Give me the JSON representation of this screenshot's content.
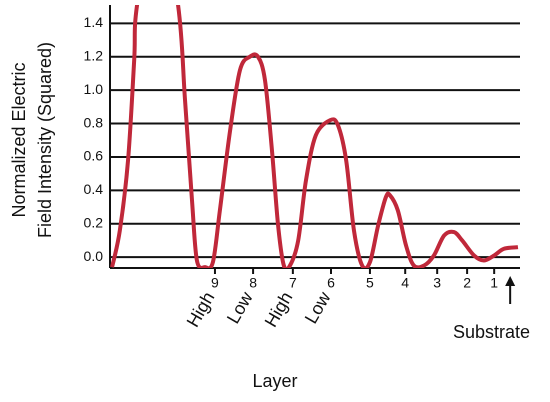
{
  "chart_data": {
    "type": "line",
    "ylabel": [
      "Normalized Electric",
      "Field Intensity (Squared)"
    ],
    "xlabel": "Layer",
    "xlim": [
      0,
      100
    ],
    "ylim": [
      -0.065,
      1.51
    ],
    "yticks": [
      {
        "value": 0,
        "label": "0.0"
      },
      0.2,
      0.4,
      0.6,
      0.8,
      {
        "value": 1,
        "label": "1.0"
      },
      1.2,
      1.4
    ],
    "xticks": [
      {
        "value": 25.6,
        "label": "9"
      },
      {
        "value": 34.9,
        "label": "8"
      },
      {
        "value": 44.6,
        "label": "7"
      },
      {
        "value": 53.9,
        "label": "6"
      },
      {
        "value": 63.4,
        "label": "5"
      },
      {
        "value": 72.0,
        "label": "4"
      },
      {
        "value": 79.8,
        "label": "3"
      },
      {
        "value": 87.1,
        "label": "2"
      },
      {
        "value": 93.7,
        "label": "1"
      }
    ],
    "layer_types": [
      "High",
      "Low",
      "High",
      "Low"
    ],
    "annotation": {
      "text": "Substrate",
      "x": 97.6
    },
    "grid": true,
    "series": [
      {
        "color": "#c0283a",
        "x": [
          0.5,
          2.4,
          4.4,
          5.9,
          6.6,
          11.5,
          16.6,
          18.3,
          20.0,
          21.2,
          23.2,
          25.1,
          26.8,
          29.3,
          31.7,
          34.1,
          36.1,
          37.8,
          39.5,
          41.0,
          42.4,
          43.9,
          45.9,
          47.8,
          50.2,
          53.7,
          55.6,
          57.6,
          59.5,
          61.5,
          63.4,
          65.4,
          67.3,
          68.3,
          70.2,
          72.2,
          74.1,
          76.6,
          79.0,
          81.5,
          83.9,
          85.9,
          88.8,
          91.2,
          93.7,
          96.1,
          99.5
        ],
        "values": [
          -0.06,
          0.16,
          0.58,
          1.18,
          1.51,
          2.2,
          1.51,
          0.94,
          0.34,
          -0.02,
          -0.06,
          -0.03,
          0.28,
          0.76,
          1.12,
          1.2,
          1.2,
          1.06,
          0.64,
          0.19,
          -0.05,
          -0.05,
          0.1,
          0.46,
          0.73,
          0.82,
          0.79,
          0.58,
          0.16,
          -0.05,
          -0.03,
          0.19,
          0.36,
          0.37,
          0.28,
          0.07,
          -0.05,
          -0.05,
          0.01,
          0.13,
          0.15,
          0.1,
          0.01,
          -0.02,
          0.01,
          0.05,
          0.06
        ]
      }
    ]
  }
}
